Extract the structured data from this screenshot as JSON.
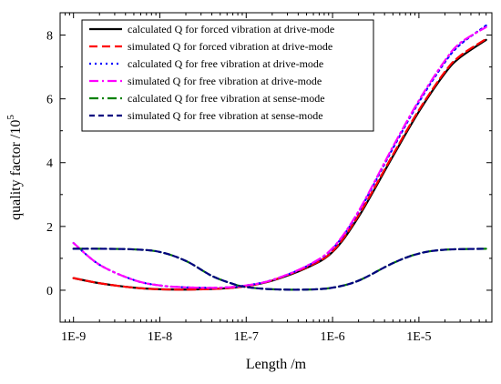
{
  "chart_data": {
    "type": "line",
    "xlabel": "Length /m",
    "ylabel_main": "quality factor /10",
    "ylabel_exp": "5",
    "x_scale": "log",
    "xlim": [
      7e-10,
      7e-05
    ],
    "ylim": [
      -1,
      8.7
    ],
    "x_ticks": [
      {
        "value": 1e-09,
        "label": "1E-9"
      },
      {
        "value": 1e-08,
        "label": "1E-8"
      },
      {
        "value": 1e-07,
        "label": "1E-7"
      },
      {
        "value": 1e-06,
        "label": "1E-6"
      },
      {
        "value": 1e-05,
        "label": "1E-5"
      }
    ],
    "y_ticks": [
      {
        "value": 0,
        "label": "0"
      },
      {
        "value": 2,
        "label": "2"
      },
      {
        "value": 4,
        "label": "4"
      },
      {
        "value": 6,
        "label": "6"
      },
      {
        "value": 8,
        "label": "8"
      }
    ],
    "legend_position": "top-left",
    "grid": false,
    "series": [
      {
        "name": "calculated Q for forced vibration at drive-mode",
        "color": "#000000",
        "dash": "solid",
        "x": [
          1e-09,
          2e-09,
          5e-09,
          1e-08,
          2e-08,
          5e-08,
          1e-07,
          2e-07,
          5e-07,
          1e-06,
          2e-06,
          5e-06,
          1e-05,
          2e-05,
          3e-05,
          6e-05
        ],
        "y": [
          0.38,
          0.22,
          0.08,
          0.03,
          0.02,
          0.05,
          0.13,
          0.3,
          0.7,
          1.2,
          2.3,
          4.2,
          5.6,
          6.8,
          7.3,
          7.85
        ]
      },
      {
        "name": "simulated Q for forced vibration at drive-mode",
        "color": "#ff0000",
        "dash": "long-dash",
        "x": [
          1e-09,
          2e-09,
          5e-09,
          1e-08,
          2e-08,
          5e-08,
          1e-07,
          2e-07,
          5e-07,
          1e-06,
          2e-06,
          5e-06,
          1e-05,
          2e-05,
          3e-05,
          6e-05
        ],
        "y": [
          0.38,
          0.22,
          0.08,
          0.03,
          0.02,
          0.05,
          0.13,
          0.31,
          0.72,
          1.22,
          2.35,
          4.25,
          5.65,
          6.85,
          7.35,
          7.88
        ]
      },
      {
        "name": "calculated Q for free vibration at drive-mode",
        "color": "#0000ff",
        "dash": "dot",
        "x": [
          1e-09,
          2e-09,
          5e-09,
          1e-08,
          2e-08,
          5e-08,
          1e-07,
          2e-07,
          5e-07,
          1e-06,
          2e-06,
          5e-06,
          1e-05,
          2e-05,
          3e-05,
          6e-05
        ],
        "y": [
          1.48,
          0.8,
          0.32,
          0.15,
          0.09,
          0.08,
          0.15,
          0.32,
          0.75,
          1.3,
          2.45,
          4.45,
          5.9,
          7.15,
          7.7,
          8.3
        ]
      },
      {
        "name": "simulated Q  for free vibration at drive-mode",
        "color": "#ff00ff",
        "dash": "dash-dot",
        "x": [
          1e-09,
          2e-09,
          5e-09,
          1e-08,
          2e-08,
          5e-08,
          1e-07,
          2e-07,
          5e-07,
          1e-06,
          2e-06,
          5e-06,
          1e-05,
          2e-05,
          3e-05,
          6e-05
        ],
        "y": [
          1.48,
          0.8,
          0.32,
          0.15,
          0.09,
          0.08,
          0.15,
          0.32,
          0.76,
          1.32,
          2.48,
          4.5,
          5.95,
          7.2,
          7.75,
          8.25
        ]
      },
      {
        "name": "calculated Q for free vibration at sense-mode",
        "color": "#008000",
        "dash": "dash-dot",
        "x": [
          1e-09,
          2e-09,
          5e-09,
          1e-08,
          2e-08,
          4e-08,
          7e-08,
          1e-07,
          2e-07,
          5e-07,
          1e-06,
          2e-06,
          5e-06,
          1e-05,
          2e-05,
          6e-05
        ],
        "y": [
          1.3,
          1.3,
          1.28,
          1.2,
          0.92,
          0.45,
          0.2,
          0.1,
          0.03,
          0.02,
          0.08,
          0.3,
          0.85,
          1.15,
          1.27,
          1.3
        ]
      },
      {
        "name": "simulated  Q for free vibration at sense-mode",
        "color": "#000080",
        "dash": "dash",
        "x": [
          1e-09,
          2e-09,
          5e-09,
          1e-08,
          2e-08,
          4e-08,
          7e-08,
          1e-07,
          2e-07,
          5e-07,
          1e-06,
          2e-06,
          5e-06,
          1e-05,
          2e-05,
          6e-05
        ],
        "y": [
          1.3,
          1.3,
          1.28,
          1.2,
          0.92,
          0.45,
          0.2,
          0.1,
          0.03,
          0.02,
          0.08,
          0.3,
          0.85,
          1.15,
          1.27,
          1.3
        ]
      }
    ]
  }
}
